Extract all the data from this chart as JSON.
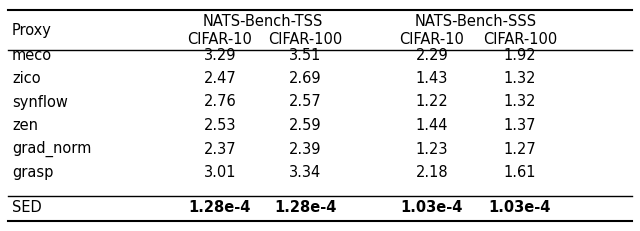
{
  "col_headers_row1_tss": "NATS-Bench-TSS",
  "col_headers_row1_sss": "NATS-Bench-SSS",
  "proxy_label": "Proxy",
  "col_headers_row2": [
    "CIFAR-10",
    "CIFAR-100",
    "CIFAR-10",
    "CIFAR-100"
  ],
  "rows": [
    [
      "meco",
      "3.29",
      "3.51",
      "2.29",
      "1.92"
    ],
    [
      "zico",
      "2.47",
      "2.69",
      "1.43",
      "1.32"
    ],
    [
      "synflow",
      "2.76",
      "2.57",
      "1.22",
      "1.32"
    ],
    [
      "zen",
      "2.53",
      "2.59",
      "1.44",
      "1.37"
    ],
    [
      "grad_norm",
      "2.37",
      "2.39",
      "1.23",
      "1.27"
    ],
    [
      "grasp",
      "3.01",
      "3.34",
      "2.18",
      "1.61"
    ]
  ],
  "last_row": [
    "SED",
    "1.28e-4",
    "1.28e-4",
    "1.03e-4",
    "1.03e-4"
  ],
  "last_row_bold": [
    false,
    true,
    true,
    true,
    true
  ],
  "background_color": "#ffffff",
  "text_color": "#000000",
  "font_size": 10.5
}
